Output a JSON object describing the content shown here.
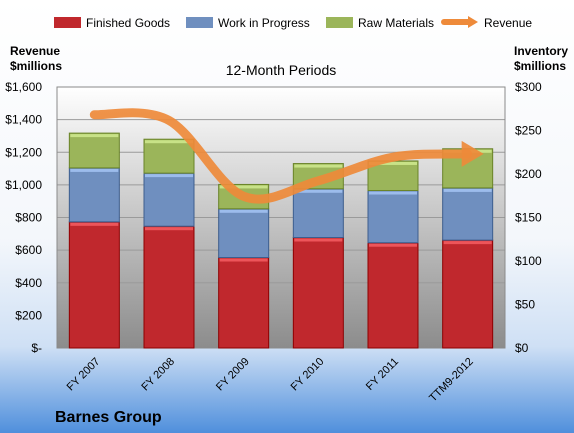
{
  "chart_data": {
    "type": "bar",
    "stacked": true,
    "subtitle": "12-Month Periods",
    "company": "Barnes Group",
    "left_axis": {
      "label_line1": "Revenue",
      "label_line2": "$millions",
      "min": 0,
      "max": 1600,
      "step": 200,
      "tick_labels": [
        "$-",
        "$200",
        "$400",
        "$600",
        "$800",
        "$1,000",
        "$1,200",
        "$1,400",
        "$1,600"
      ]
    },
    "right_axis": {
      "label_line1": "Inventory",
      "label_line2": "$millions",
      "min": 0,
      "max": 300,
      "step": 50,
      "tick_labels": [
        "$0",
        "$50",
        "$100",
        "$150",
        "$200",
        "$250",
        "$300"
      ]
    },
    "categories": [
      "FY 2007",
      "FY 2008",
      "FY 2009",
      "FY 2010",
      "FY 2011",
      "TTM9-2012"
    ],
    "series": [
      {
        "name": "Finished Goods",
        "color": "#c0282d",
        "axis": "right",
        "values": [
          145,
          140,
          104,
          127,
          121,
          124
        ]
      },
      {
        "name": "Work in Progress",
        "color": "#6f8fbf",
        "axis": "right",
        "values": [
          62,
          61,
          56,
          56,
          60,
          60
        ]
      },
      {
        "name": "Raw Materials",
        "color": "#9bb55a",
        "axis": "right",
        "values": [
          40,
          39,
          28,
          29,
          34,
          45
        ]
      }
    ],
    "line_series": {
      "name": "Revenue",
      "color": "#ee8a3a",
      "axis": "left",
      "values": [
        1430,
        1395,
        930,
        1025,
        1170,
        1190
      ]
    },
    "legend_position": "top",
    "grid": true
  }
}
